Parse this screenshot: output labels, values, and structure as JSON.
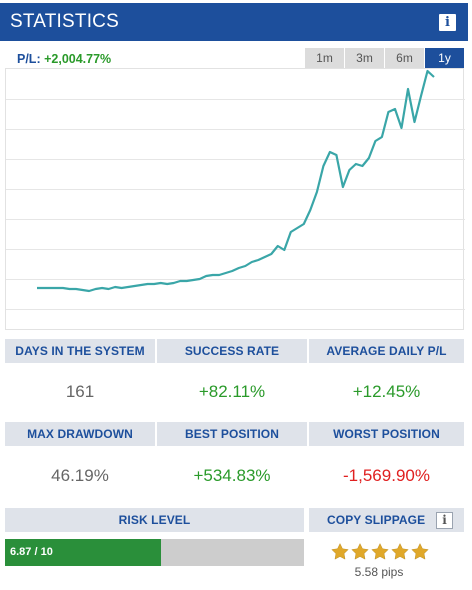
{
  "header": {
    "title": "STATISTICS",
    "info_icon": "i"
  },
  "pl": {
    "label": "P/L:",
    "value": "+2,004.77%"
  },
  "tabs": [
    {
      "label": "1m",
      "active": false
    },
    {
      "label": "3m",
      "active": false
    },
    {
      "label": "6m",
      "active": false
    },
    {
      "label": "1y",
      "active": true
    }
  ],
  "chart": {
    "line_color": "#3aa6a8",
    "values": [
      20,
      20,
      20,
      20,
      20,
      19,
      19,
      18,
      17,
      19,
      20,
      19,
      21,
      20,
      21,
      22,
      23,
      24,
      24,
      25,
      24,
      25,
      27,
      27,
      28,
      29,
      32,
      33,
      33,
      35,
      37,
      40,
      42,
      46,
      48,
      51,
      54,
      62,
      58,
      76,
      80,
      84,
      98,
      116,
      142,
      156,
      153,
      121,
      138,
      144,
      142,
      150,
      167,
      171,
      196,
      199,
      180,
      219,
      186,
      212,
      237,
      231
    ]
  },
  "stats": {
    "days_label": "DAYS IN THE SYSTEM",
    "days_value": "161",
    "success_label": "SUCCESS RATE",
    "success_value": "+82.11%",
    "avg_label": "AVERAGE DAILY P/L",
    "avg_value": "+12.45%",
    "drawdown_label": "MAX DRAWDOWN",
    "drawdown_value": "46.19%",
    "best_label": "BEST POSITION",
    "best_value": "+534.83%",
    "worst_label": "WORST POSITION",
    "worst_value": "-1,569.90%"
  },
  "risk": {
    "label": "RISK LEVEL",
    "value_text": "6.87 / 10",
    "fraction": 0.687
  },
  "slippage": {
    "label": "COPY SLIPPAGE",
    "info_icon": "i",
    "rating": 5,
    "pips_text": "5.58 pips",
    "star_color": "#e0a82a"
  }
}
